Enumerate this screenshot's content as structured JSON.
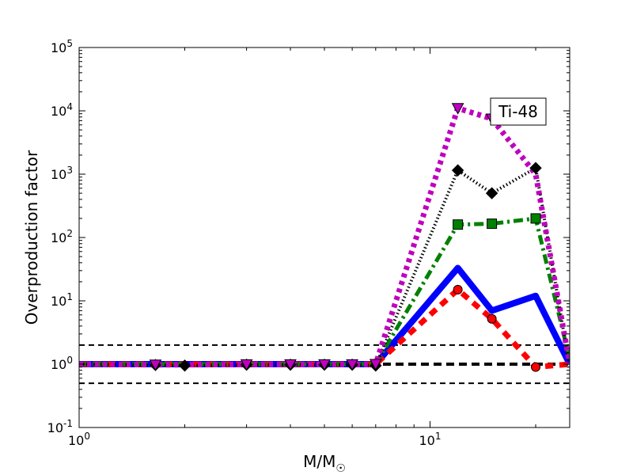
{
  "chart_data": {
    "type": "line",
    "title": "",
    "annotation": "Ti-48",
    "xlabel_main": "M/M",
    "xlabel_sub": "☉",
    "ylabel": "Overproduction factor",
    "xscale": "log",
    "yscale": "log",
    "xlim": [
      1,
      25
    ],
    "ylim": [
      0.1,
      100000
    ],
    "x_ticks": [
      {
        "value": 1,
        "base": "10",
        "exp": "0"
      },
      {
        "value": 10,
        "base": "10",
        "exp": "1"
      }
    ],
    "y_ticks": [
      {
        "value": 0.1,
        "base": "10",
        "exp": "-1"
      },
      {
        "value": 1,
        "base": "10",
        "exp": "0"
      },
      {
        "value": 10,
        "base": "10",
        "exp": "1"
      },
      {
        "value": 100,
        "base": "10",
        "exp": "2"
      },
      {
        "value": 1000,
        "base": "10",
        "exp": "3"
      },
      {
        "value": 10000,
        "base": "10",
        "exp": "4"
      },
      {
        "value": 100000,
        "base": "10",
        "exp": "5"
      }
    ],
    "reference_lines": [
      {
        "y": 2,
        "style": "dashed-thin"
      },
      {
        "y": 1,
        "style": "dashed-thick"
      },
      {
        "y": 0.5,
        "style": "dashed-thin"
      }
    ],
    "series": [
      {
        "color": "#0000ff",
        "line": "solid",
        "marker": "none",
        "x": [
          1,
          1.65,
          2,
          3,
          4,
          5,
          6,
          7,
          12,
          15,
          20,
          25
        ],
        "y": [
          1,
          1,
          1,
          1,
          1,
          1,
          1,
          1,
          33,
          7,
          12,
          1
        ],
        "markers_x": []
      },
      {
        "color": "#ff0000",
        "line": "dashed-heavy",
        "marker": "circle",
        "x": [
          1,
          1.65,
          2,
          3,
          4,
          5,
          6,
          7,
          12,
          15,
          20,
          25
        ],
        "y": [
          1,
          1,
          1,
          1,
          1,
          1,
          1,
          1,
          15,
          5.2,
          0.9,
          1.0
        ],
        "markers_x": [
          12,
          15,
          20
        ]
      },
      {
        "color": "#008000",
        "line": "dashdot",
        "marker": "square",
        "x": [
          1,
          1.65,
          2,
          3,
          4,
          5,
          6,
          7,
          12,
          15,
          20,
          25
        ],
        "y": [
          1,
          1,
          1,
          1,
          1,
          1,
          1,
          1,
          160,
          165,
          200,
          1.2
        ],
        "markers_x": [
          12,
          15,
          20
        ]
      },
      {
        "color": "#000000",
        "line": "dotted",
        "marker": "diamond",
        "x": [
          1,
          1.65,
          2,
          3,
          4,
          5,
          6,
          7,
          12,
          15,
          20,
          25
        ],
        "y": [
          1,
          0.97,
          0.95,
          0.98,
          0.98,
          0.98,
          0.98,
          0.95,
          1150,
          500,
          1250,
          0.9
        ],
        "markers_x": [
          1.65,
          2,
          3,
          4,
          5,
          6,
          7,
          12,
          15,
          20
        ]
      },
      {
        "color": "#bf00bf",
        "line": "dotted-heavy",
        "marker": "triangle-down",
        "x": [
          1,
          1.65,
          2,
          3,
          4,
          5,
          6,
          7,
          12,
          15,
          20,
          25
        ],
        "y": [
          1,
          0.98,
          0.98,
          0.99,
          0.99,
          0.99,
          0.99,
          1.0,
          11000,
          7500,
          1000,
          1.0
        ],
        "markers_x": [
          1.65,
          3,
          4,
          5,
          6,
          7,
          12,
          15
        ]
      }
    ]
  }
}
